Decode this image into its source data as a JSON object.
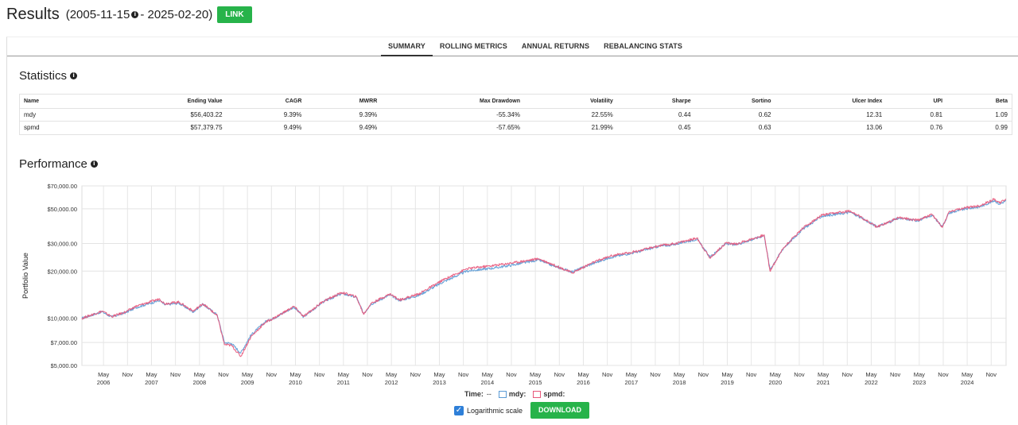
{
  "header": {
    "title": "Results",
    "date_start": "(2005-11-15",
    "date_end": "- 2025-02-20)",
    "link_label": "LINK"
  },
  "tabs": [
    "SUMMARY",
    "ROLLING METRICS",
    "ANNUAL RETURNS",
    "REBALANCING STATS"
  ],
  "statistics": {
    "title": "Statistics",
    "columns": [
      "Name",
      "Ending Value",
      "CAGR",
      "MWRR",
      "Max Drawdown",
      "Volatility",
      "Sharpe",
      "Sortino",
      "Ulcer Index",
      "UPI",
      "Beta"
    ],
    "rows": [
      [
        "mdy",
        "$56,403.22",
        "9.39%",
        "9.39%",
        "-55.34%",
        "22.55%",
        "0.44",
        "0.62",
        "12.31",
        "0.81",
        "1.09"
      ],
      [
        "spmd",
        "$57,379.75",
        "9.49%",
        "9.49%",
        "-57.65%",
        "21.99%",
        "0.45",
        "0.63",
        "13.06",
        "0.76",
        "0.99"
      ]
    ]
  },
  "performance": {
    "title": "Performance",
    "legend_time_label": "Time:",
    "legend_time_value": "--",
    "log_scale_label": "Logarithmic scale",
    "download_label": "DOWNLOAD"
  },
  "colors": {
    "accent": "#27b34a",
    "mdy": "#5b9bd5",
    "spmd": "#e8577a",
    "check": "#2e7fd8"
  },
  "chart_data": {
    "type": "line",
    "title": "Performance",
    "ylabel": "Portfolio Value",
    "xlabel": "",
    "yscale": "log",
    "ylim": [
      5000,
      70000
    ],
    "y_ticks": [
      {
        "value": 5000,
        "label": "$5,000.00"
      },
      {
        "value": 7000,
        "label": "$7,000.00"
      },
      {
        "value": 10000,
        "label": "$10,000.00"
      },
      {
        "value": 20000,
        "label": "$20,000.00"
      },
      {
        "value": 30000,
        "label": "$30,000.00"
      },
      {
        "value": 50000,
        "label": "$50,000.00"
      },
      {
        "value": 70000,
        "label": "$70,000.00"
      }
    ],
    "x_range": [
      2005.88,
      2025.14
    ],
    "x_years": [
      "2006",
      "2007",
      "2008",
      "2009",
      "2010",
      "2011",
      "2012",
      "2013",
      "2014",
      "2015",
      "2016",
      "2017",
      "2018",
      "2019",
      "2020",
      "2021",
      "2022",
      "2023",
      "2024"
    ],
    "month_labels": [
      "May",
      "Nov"
    ],
    "series": [
      {
        "name": "mdy:",
        "points": [
          [
            2005.88,
            10000
          ],
          [
            2006.3,
            11000
          ],
          [
            2006.5,
            10200
          ],
          [
            2006.8,
            10900
          ],
          [
            2007.0,
            11700
          ],
          [
            2007.5,
            13000
          ],
          [
            2007.6,
            12200
          ],
          [
            2007.9,
            12500
          ],
          [
            2008.2,
            11000
          ],
          [
            2008.4,
            12300
          ],
          [
            2008.7,
            10500
          ],
          [
            2008.85,
            7000
          ],
          [
            2009.0,
            6900
          ],
          [
            2009.19,
            6000
          ],
          [
            2009.4,
            7800
          ],
          [
            2009.7,
            9500
          ],
          [
            2009.9,
            10100
          ],
          [
            2010.3,
            11800
          ],
          [
            2010.5,
            10200
          ],
          [
            2010.9,
            12700
          ],
          [
            2011.3,
            14400
          ],
          [
            2011.6,
            13600
          ],
          [
            2011.75,
            10700
          ],
          [
            2011.9,
            12300
          ],
          [
            2012.3,
            14100
          ],
          [
            2012.5,
            13000
          ],
          [
            2012.9,
            14000
          ],
          [
            2013.4,
            17000
          ],
          [
            2013.9,
            20000
          ],
          [
            2014.5,
            21000
          ],
          [
            2014.9,
            22000
          ],
          [
            2015.4,
            23600
          ],
          [
            2015.7,
            21600
          ],
          [
            2016.1,
            19800
          ],
          [
            2016.5,
            22200
          ],
          [
            2016.9,
            24500
          ],
          [
            2017.5,
            26700
          ],
          [
            2017.9,
            28800
          ],
          [
            2018.2,
            29500
          ],
          [
            2018.7,
            32000
          ],
          [
            2018.97,
            24500
          ],
          [
            2019.3,
            30000
          ],
          [
            2019.5,
            29400
          ],
          [
            2019.9,
            32200
          ],
          [
            2020.1,
            33800
          ],
          [
            2020.22,
            20500
          ],
          [
            2020.5,
            28000
          ],
          [
            2020.9,
            37000
          ],
          [
            2021.3,
            44800
          ],
          [
            2021.9,
            47500
          ],
          [
            2022.45,
            38500
          ],
          [
            2022.7,
            41000
          ],
          [
            2022.9,
            43500
          ],
          [
            2023.3,
            42000
          ],
          [
            2023.6,
            45500
          ],
          [
            2023.81,
            38500
          ],
          [
            2023.95,
            47000
          ],
          [
            2024.3,
            50000
          ],
          [
            2024.6,
            51500
          ],
          [
            2024.9,
            56500
          ],
          [
            2025.0,
            53500
          ],
          [
            2025.14,
            56403
          ]
        ]
      },
      {
        "name": "spmd:",
        "points": [
          [
            2005.88,
            10000
          ],
          [
            2006.3,
            11100
          ],
          [
            2006.5,
            10250
          ],
          [
            2006.8,
            11000
          ],
          [
            2007.0,
            11900
          ],
          [
            2007.5,
            13300
          ],
          [
            2007.6,
            12400
          ],
          [
            2007.9,
            12700
          ],
          [
            2008.2,
            11100
          ],
          [
            2008.4,
            12400
          ],
          [
            2008.7,
            10400
          ],
          [
            2008.85,
            6800
          ],
          [
            2009.0,
            6700
          ],
          [
            2009.19,
            5700
          ],
          [
            2009.4,
            7600
          ],
          [
            2009.7,
            9400
          ],
          [
            2009.9,
            10100
          ],
          [
            2010.3,
            11900
          ],
          [
            2010.5,
            10250
          ],
          [
            2010.9,
            12800
          ],
          [
            2011.3,
            14600
          ],
          [
            2011.6,
            13700
          ],
          [
            2011.75,
            10600
          ],
          [
            2011.9,
            12400
          ],
          [
            2012.3,
            14300
          ],
          [
            2012.5,
            13100
          ],
          [
            2012.9,
            14300
          ],
          [
            2013.4,
            17500
          ],
          [
            2013.9,
            20700
          ],
          [
            2014.5,
            21800
          ],
          [
            2014.9,
            22700
          ],
          [
            2015.4,
            24000
          ],
          [
            2015.7,
            22000
          ],
          [
            2016.1,
            19500
          ],
          [
            2016.5,
            22500
          ],
          [
            2016.9,
            25000
          ],
          [
            2017.5,
            27000
          ],
          [
            2017.9,
            29000
          ],
          [
            2018.2,
            29800
          ],
          [
            2018.7,
            32500
          ],
          [
            2018.97,
            24200
          ],
          [
            2019.3,
            30300
          ],
          [
            2019.5,
            29700
          ],
          [
            2019.9,
            32500
          ],
          [
            2020.1,
            34000
          ],
          [
            2020.22,
            20000
          ],
          [
            2020.5,
            28200
          ],
          [
            2020.9,
            37600
          ],
          [
            2021.3,
            45500
          ],
          [
            2021.9,
            48500
          ],
          [
            2022.45,
            38200
          ],
          [
            2022.7,
            41300
          ],
          [
            2022.9,
            44000
          ],
          [
            2023.3,
            42300
          ],
          [
            2023.6,
            46000
          ],
          [
            2023.81,
            38000
          ],
          [
            2023.95,
            47800
          ],
          [
            2024.3,
            50800
          ],
          [
            2024.6,
            52300
          ],
          [
            2024.9,
            57800
          ],
          [
            2025.0,
            54500
          ],
          [
            2025.14,
            57380
          ]
        ]
      }
    ]
  }
}
